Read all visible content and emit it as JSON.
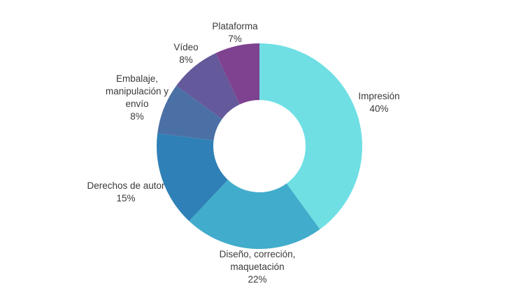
{
  "page": {
    "background_color": "#ffffff",
    "text_color": "#3a3a3a"
  },
  "chart_data": {
    "type": "pie",
    "subtype": "donut",
    "title": "",
    "legend": "none",
    "labels_position": "outside",
    "start_angle": "top, clockwise",
    "total": 100,
    "categories": [
      "Impresión",
      "Diseño, correción, maquetación",
      "Derechos de autor",
      "Embalaje, manipulación y envío",
      "Vídeo",
      "Plataforma"
    ],
    "values": [
      40,
      22,
      15,
      8,
      8,
      7
    ],
    "segments": [
      {
        "label": "Impresión",
        "value": 40,
        "pct": "40%",
        "color": "#6FDFE4",
        "display": "Impresión\n40%"
      },
      {
        "label": "Diseño, correción, maquetación",
        "value": 22,
        "pct": "22%",
        "color": "#41ACCB",
        "display": "Diseño, correción,\nmaquetación\n22%"
      },
      {
        "label": "Derechos de autor",
        "value": 15,
        "pct": "15%",
        "color": "#2F80B6",
        "display": "Derechos de autor\n15%"
      },
      {
        "label": "Embalaje, manipulación y envío",
        "value": 8,
        "pct": "8%",
        "color": "#4B70A6",
        "display": "Embalaje,\nmanipulación y\nenvío\n8%"
      },
      {
        "label": "Vídeo",
        "value": 8,
        "pct": "8%",
        "color": "#64599B",
        "display": "Vídeo\n8%"
      },
      {
        "label": "Plataforma",
        "value": 7,
        "pct": "7%",
        "color": "#7E4291",
        "display": "Plataforma\n7%"
      }
    ]
  }
}
